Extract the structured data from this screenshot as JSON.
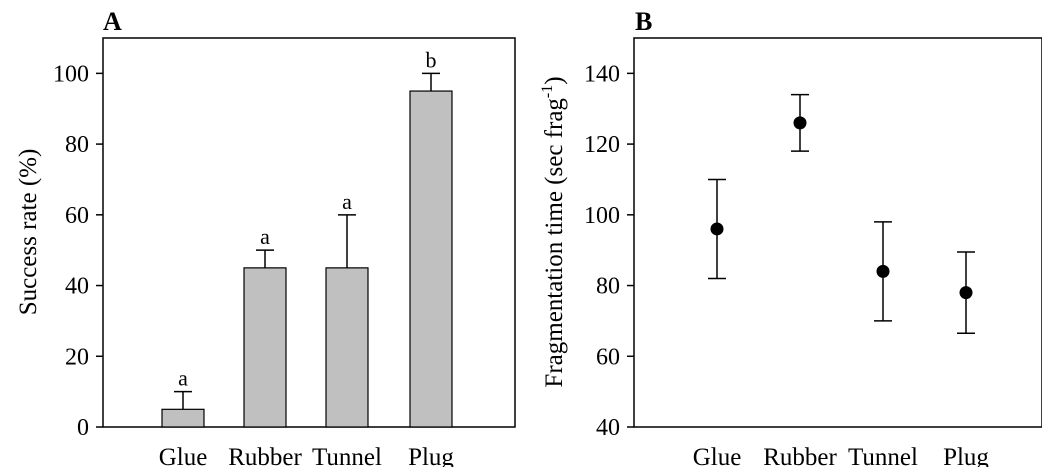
{
  "chart_data": [
    {
      "panel": "A",
      "type": "bar",
      "categories": [
        "Glue",
        "Rubber",
        "Tunnel",
        "Plug"
      ],
      "values": [
        5,
        45,
        45,
        95
      ],
      "error_upper": [
        10,
        50,
        60,
        100
      ],
      "significance_labels": [
        "a",
        "a",
        "a",
        "b"
      ],
      "ylabel": "Success rate (%)",
      "yticks": [
        0,
        20,
        40,
        60,
        80,
        100
      ],
      "ylim": [
        0,
        110
      ],
      "bar_color": "#c0c0c0",
      "grid": false
    },
    {
      "panel": "B",
      "type": "scatter",
      "categories": [
        "Glue",
        "Rubber",
        "Tunnel",
        "Plug"
      ],
      "values": [
        96,
        126,
        84,
        78
      ],
      "error_lower": [
        82,
        118,
        70,
        66.5
      ],
      "error_upper": [
        110,
        134,
        98,
        89.5
      ],
      "ylabel_main": "Fragmentation time (sec frag",
      "ylabel_sup": "-1",
      "ylabel_close": ")",
      "yticks": [
        40,
        60,
        80,
        100,
        120,
        140
      ],
      "ylim": [
        40,
        150
      ],
      "marker_color": "#000000",
      "grid": false
    }
  ]
}
